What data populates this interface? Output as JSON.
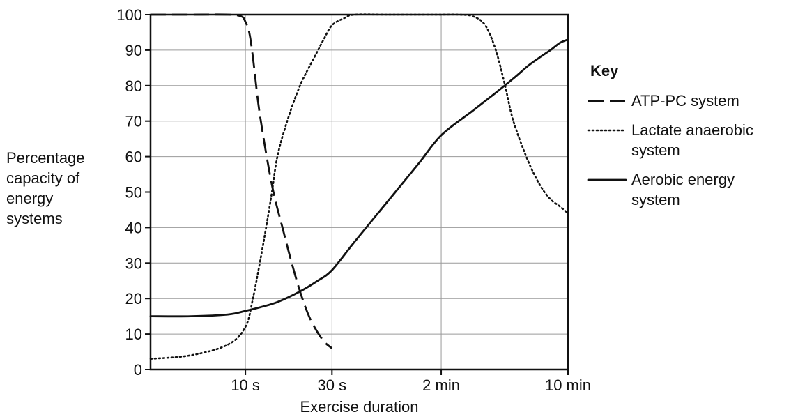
{
  "chart_data": {
    "type": "line",
    "title": "",
    "ylabel": [
      "Percentage",
      "capacity of",
      "energy",
      "systems"
    ],
    "xlabel": "Exercise duration",
    "ylim": [
      0,
      100
    ],
    "yticks": [
      "0",
      "10",
      "20",
      "30",
      "40",
      "50",
      "60",
      "70",
      "80",
      "90",
      "100"
    ],
    "xticks": [
      "10 s",
      "30 s",
      "2 min",
      "10 min"
    ],
    "grid": true,
    "legend": {
      "title": "Key",
      "position": "right",
      "entries": [
        {
          "lines": [
            "ATP-PC system"
          ],
          "style": "dashed"
        },
        {
          "lines": [
            "Lactate anaerobic",
            "system"
          ],
          "style": "dotted"
        },
        {
          "lines": [
            "Aerobic energy",
            "system"
          ],
          "style": "solid"
        }
      ]
    },
    "series": [
      {
        "name": "ATP-PC system",
        "style": "dashed",
        "x": [
          "3 s",
          "5 s",
          "8 s",
          "9.5 s",
          "10 s",
          "10.5 s",
          "11 s",
          "12 s",
          "14 s",
          "16 s",
          "18 s",
          "20 s",
          "22 s",
          "24 s",
          "27 s",
          "30 s"
        ],
        "y": [
          100,
          100,
          100,
          99.5,
          98,
          95,
          88,
          72,
          52,
          40,
          30,
          22,
          16,
          12,
          8,
          6
        ]
      },
      {
        "name": "Lactate anaerobic system",
        "style": "dotted",
        "x": [
          "3 s",
          "5 s",
          "8 s",
          "10 s",
          "11 s",
          "12 s",
          "13 s",
          "14 s",
          "15 s",
          "17 s",
          "20 s",
          "24 s",
          "27 s",
          "30 s",
          "35 s",
          "40 s",
          "1 min",
          "1.5 min",
          "2 min",
          "2.5 min",
          "3 min",
          "3.5 min",
          "4 min",
          "4.5 min",
          "5 min",
          "6 min",
          "7 min",
          "8 min",
          "9 min",
          "10 min"
        ],
        "y": [
          3,
          4,
          7,
          12,
          20,
          30,
          40,
          50,
          60,
          70,
          80,
          88,
          93,
          97,
          99,
          100,
          100,
          100,
          100,
          100,
          99.5,
          97,
          90,
          80,
          70,
          59,
          52,
          48,
          46,
          44
        ]
      },
      {
        "name": "Aerobic energy system",
        "style": "solid",
        "x": [
          "3 s",
          "5 s",
          "8 s",
          "10 s",
          "12 s",
          "15 s",
          "20 s",
          "25 s",
          "30 s",
          "40 s",
          "1 min",
          "1.5 min",
          "2 min",
          "3 min",
          "4 min",
          "5 min",
          "6 min",
          "7 min",
          "8 min",
          "9 min",
          "10 min"
        ],
        "y": [
          15,
          15,
          15.5,
          16.5,
          17.5,
          19,
          22,
          25,
          28,
          36,
          47,
          58,
          66,
          73,
          78,
          82,
          85.5,
          88,
          90,
          92,
          93
        ]
      }
    ]
  }
}
